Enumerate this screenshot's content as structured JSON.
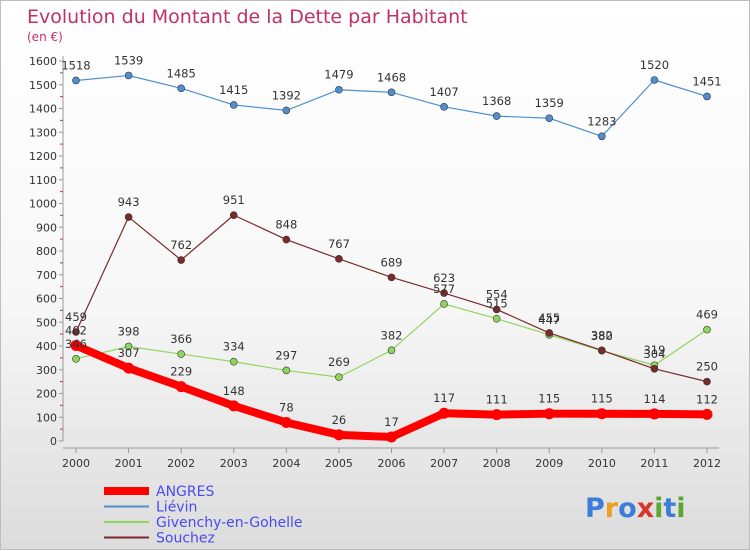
{
  "chart_data": {
    "type": "line",
    "title": "Evolution du Montant de la Dette par Habitant",
    "subtitle": "(en €)",
    "xlabel": "",
    "ylabel": "",
    "x": [
      "2000",
      "2001",
      "2002",
      "2003",
      "2004",
      "2005",
      "2006",
      "2007",
      "2008",
      "2009",
      "2010",
      "2011",
      "2012"
    ],
    "ylim": [
      0,
      1600
    ],
    "yticks": [
      0,
      100,
      200,
      300,
      400,
      500,
      600,
      700,
      800,
      900,
      1000,
      1100,
      1200,
      1300,
      1400,
      1500,
      1600
    ],
    "grid": false,
    "legend_position": "bottom-left",
    "series": [
      {
        "name": "Liévin",
        "color": "#4f8fcf",
        "values": [
          1518,
          1539,
          1485,
          1415,
          1392,
          1479,
          1468,
          1407,
          1368,
          1359,
          1283,
          1520,
          1451
        ]
      },
      {
        "name": "Givenchy-en-Gohelle",
        "color": "#8ed65c",
        "values": [
          346,
          398,
          366,
          334,
          297,
          269,
          382,
          577,
          515,
          447,
          380,
          319,
          469
        ]
      },
      {
        "name": "Souchez",
        "color": "#7a2a2a",
        "values": [
          459,
          943,
          762,
          951,
          848,
          767,
          689,
          623,
          554,
          455,
          382,
          304,
          250
        ]
      },
      {
        "name": "ANGRES",
        "color": "#ff0000",
        "values": [
          402,
          307,
          229,
          148,
          78,
          26,
          17,
          117,
          111,
          115,
          115,
          114,
          112
        ]
      }
    ],
    "legend": [
      "ANGRES",
      "Liévin",
      "Givenchy-en-Gohelle",
      "Souchez"
    ]
  },
  "logo": {
    "text": "Proxiti"
  }
}
